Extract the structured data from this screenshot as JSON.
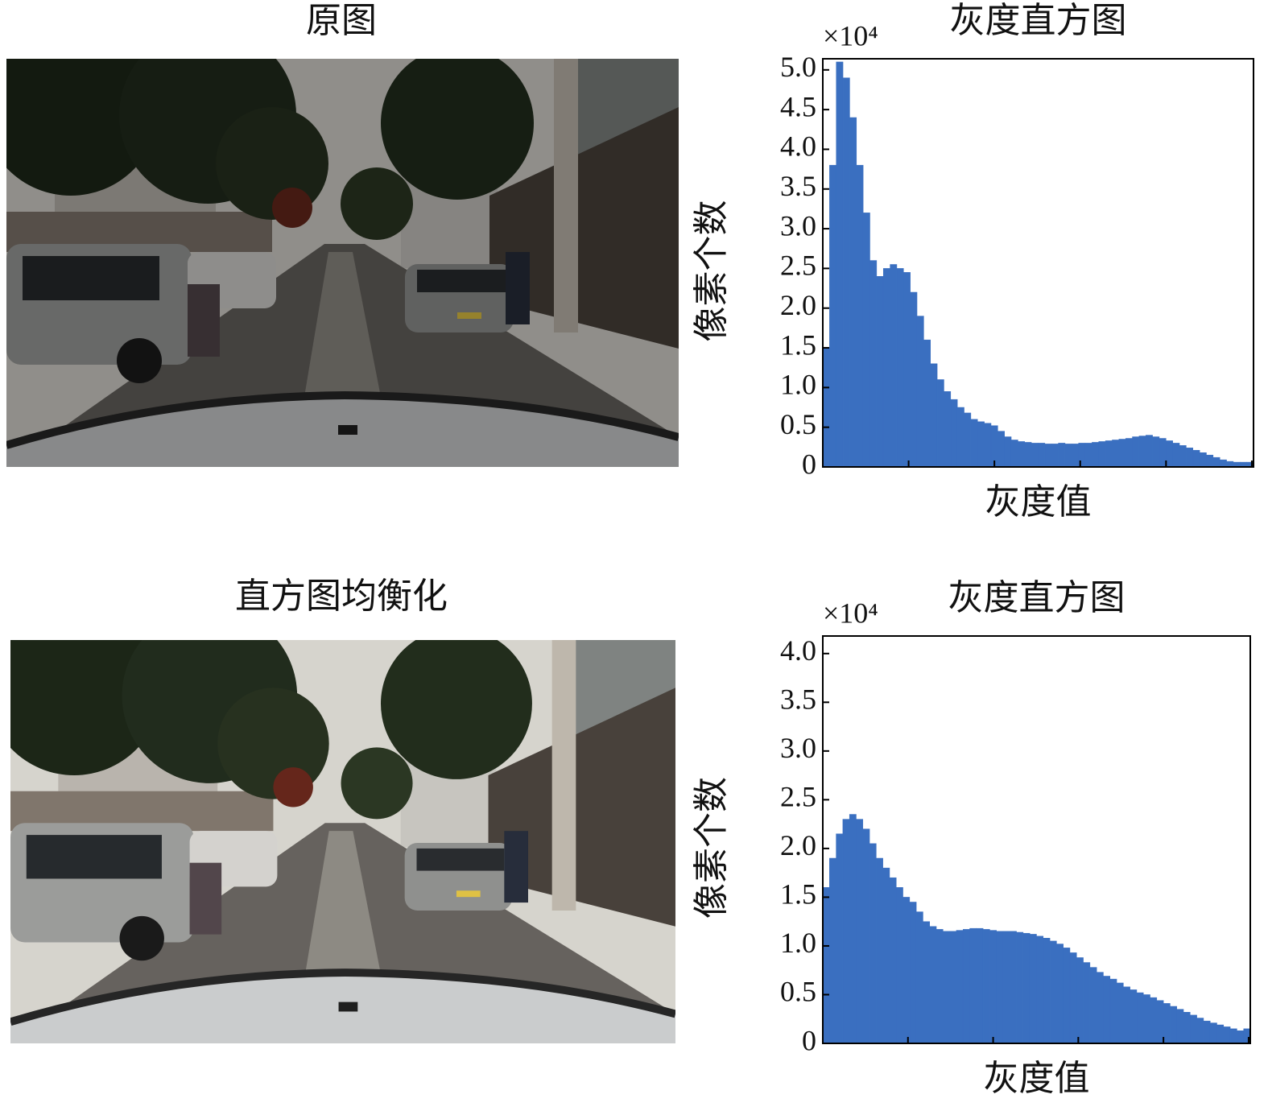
{
  "images": [
    {
      "title": "原图"
    },
    {
      "title": "直方图均衡化"
    }
  ],
  "chart_data": [
    {
      "type": "histogram",
      "title": "灰度直方图",
      "x_label": "灰度值",
      "y_label": "像素个数",
      "axis_multiplier": "×10⁴",
      "color": "#3a6fc0",
      "xlim": [
        0,
        256
      ],
      "xticks": [
        0,
        51,
        102,
        153,
        204,
        255
      ],
      "ylim": [
        0,
        5.14
      ],
      "yticks": [
        0,
        0.5,
        {
          "value": 1,
          "label": "1.0"
        },
        1.5,
        {
          "value": 2,
          "label": "2.0"
        },
        2.5,
        {
          "value": 3,
          "label": "3.0"
        },
        3.5,
        {
          "value": 4,
          "label": "4.0"
        },
        4.5,
        {
          "value": 5,
          "label": "5.0"
        }
      ],
      "bins": [
        0,
        4,
        8,
        12,
        16,
        20,
        24,
        28,
        32,
        36,
        40,
        44,
        48,
        52,
        56,
        60,
        64,
        68,
        72,
        76,
        80,
        84,
        88,
        92,
        96,
        100,
        104,
        108,
        112,
        116,
        120,
        124,
        128,
        132,
        136,
        140,
        144,
        148,
        152,
        156,
        160,
        164,
        168,
        172,
        176,
        180,
        184,
        188,
        192,
        196,
        200,
        204,
        208,
        212,
        216,
        220,
        224,
        228,
        232,
        236,
        240,
        244,
        248,
        252,
        256
      ],
      "values": [
        1.5,
        3.8,
        5.1,
        4.9,
        4.4,
        3.8,
        3.2,
        2.6,
        2.4,
        2.5,
        2.55,
        2.5,
        2.45,
        2.2,
        1.9,
        1.6,
        1.3,
        1.1,
        0.95,
        0.85,
        0.75,
        0.68,
        0.6,
        0.57,
        0.55,
        0.52,
        0.45,
        0.38,
        0.34,
        0.32,
        0.31,
        0.3,
        0.3,
        0.29,
        0.29,
        0.3,
        0.29,
        0.29,
        0.3,
        0.3,
        0.31,
        0.32,
        0.33,
        0.34,
        0.35,
        0.36,
        0.38,
        0.39,
        0.4,
        0.38,
        0.36,
        0.33,
        0.3,
        0.27,
        0.24,
        0.21,
        0.18,
        0.15,
        0.12,
        0.09,
        0.07,
        0.06,
        0.06,
        0.06
      ]
    },
    {
      "type": "histogram",
      "title": "灰度直方图",
      "x_label": "灰度值",
      "y_label": "像素个数",
      "axis_multiplier": "×10⁴",
      "color": "#3a6fc0",
      "xlim": [
        0,
        256
      ],
      "xticks": [
        0,
        51,
        102,
        153,
        204,
        255
      ],
      "ylim": [
        0,
        4.18
      ],
      "yticks": [
        0,
        0.5,
        {
          "value": 1,
          "label": "1.0"
        },
        1.5,
        {
          "value": 2,
          "label": "2.0"
        },
        2.5,
        {
          "value": 3,
          "label": "3.0"
        },
        3.5,
        {
          "value": 4,
          "label": "4.0"
        }
      ],
      "bins": [
        0,
        4,
        8,
        12,
        16,
        20,
        24,
        28,
        32,
        36,
        40,
        44,
        48,
        52,
        56,
        60,
        64,
        68,
        72,
        76,
        80,
        84,
        88,
        92,
        96,
        100,
        104,
        108,
        112,
        116,
        120,
        124,
        128,
        132,
        136,
        140,
        144,
        148,
        152,
        156,
        160,
        164,
        168,
        172,
        176,
        180,
        184,
        188,
        192,
        196,
        200,
        204,
        208,
        212,
        216,
        220,
        224,
        228,
        232,
        236,
        240,
        244,
        248,
        252,
        256
      ],
      "values": [
        1.6,
        1.9,
        2.15,
        2.3,
        2.35,
        2.3,
        2.2,
        2.05,
        1.9,
        1.8,
        1.7,
        1.6,
        1.5,
        1.45,
        1.35,
        1.25,
        1.2,
        1.17,
        1.15,
        1.15,
        1.16,
        1.17,
        1.18,
        1.18,
        1.17,
        1.16,
        1.15,
        1.15,
        1.15,
        1.14,
        1.13,
        1.12,
        1.1,
        1.08,
        1.05,
        1.02,
        0.98,
        0.93,
        0.88,
        0.83,
        0.78,
        0.73,
        0.69,
        0.66,
        0.62,
        0.58,
        0.55,
        0.52,
        0.5,
        0.47,
        0.44,
        0.41,
        0.38,
        0.35,
        0.32,
        0.29,
        0.26,
        0.23,
        0.21,
        0.19,
        0.17,
        0.15,
        0.13,
        0.15
      ]
    }
  ]
}
